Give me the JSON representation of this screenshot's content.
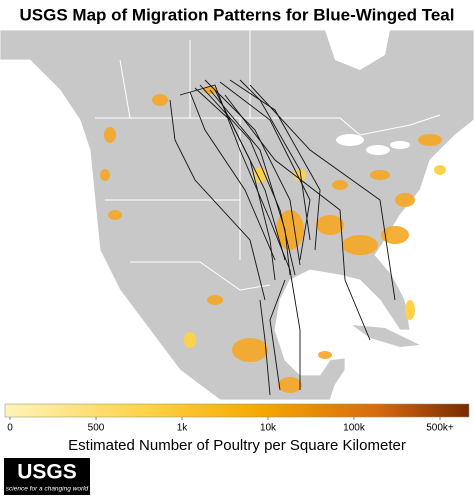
{
  "title": "USGS Map of Migration Patterns for Blue-Winged Teal",
  "colorbar": {
    "label": "Estimated Number of Poultry per Square Kilometer",
    "ticks": [
      0,
      500,
      {
        "value": 1000,
        "label": "1k"
      },
      {
        "value": 10000,
        "label": "10k"
      },
      {
        "value": 100000,
        "label": "100k"
      },
      {
        "value": 500000,
        "label": "500k+"
      }
    ]
  },
  "logo": {
    "name": "USGS",
    "tagline": "science for a changing world"
  }
}
